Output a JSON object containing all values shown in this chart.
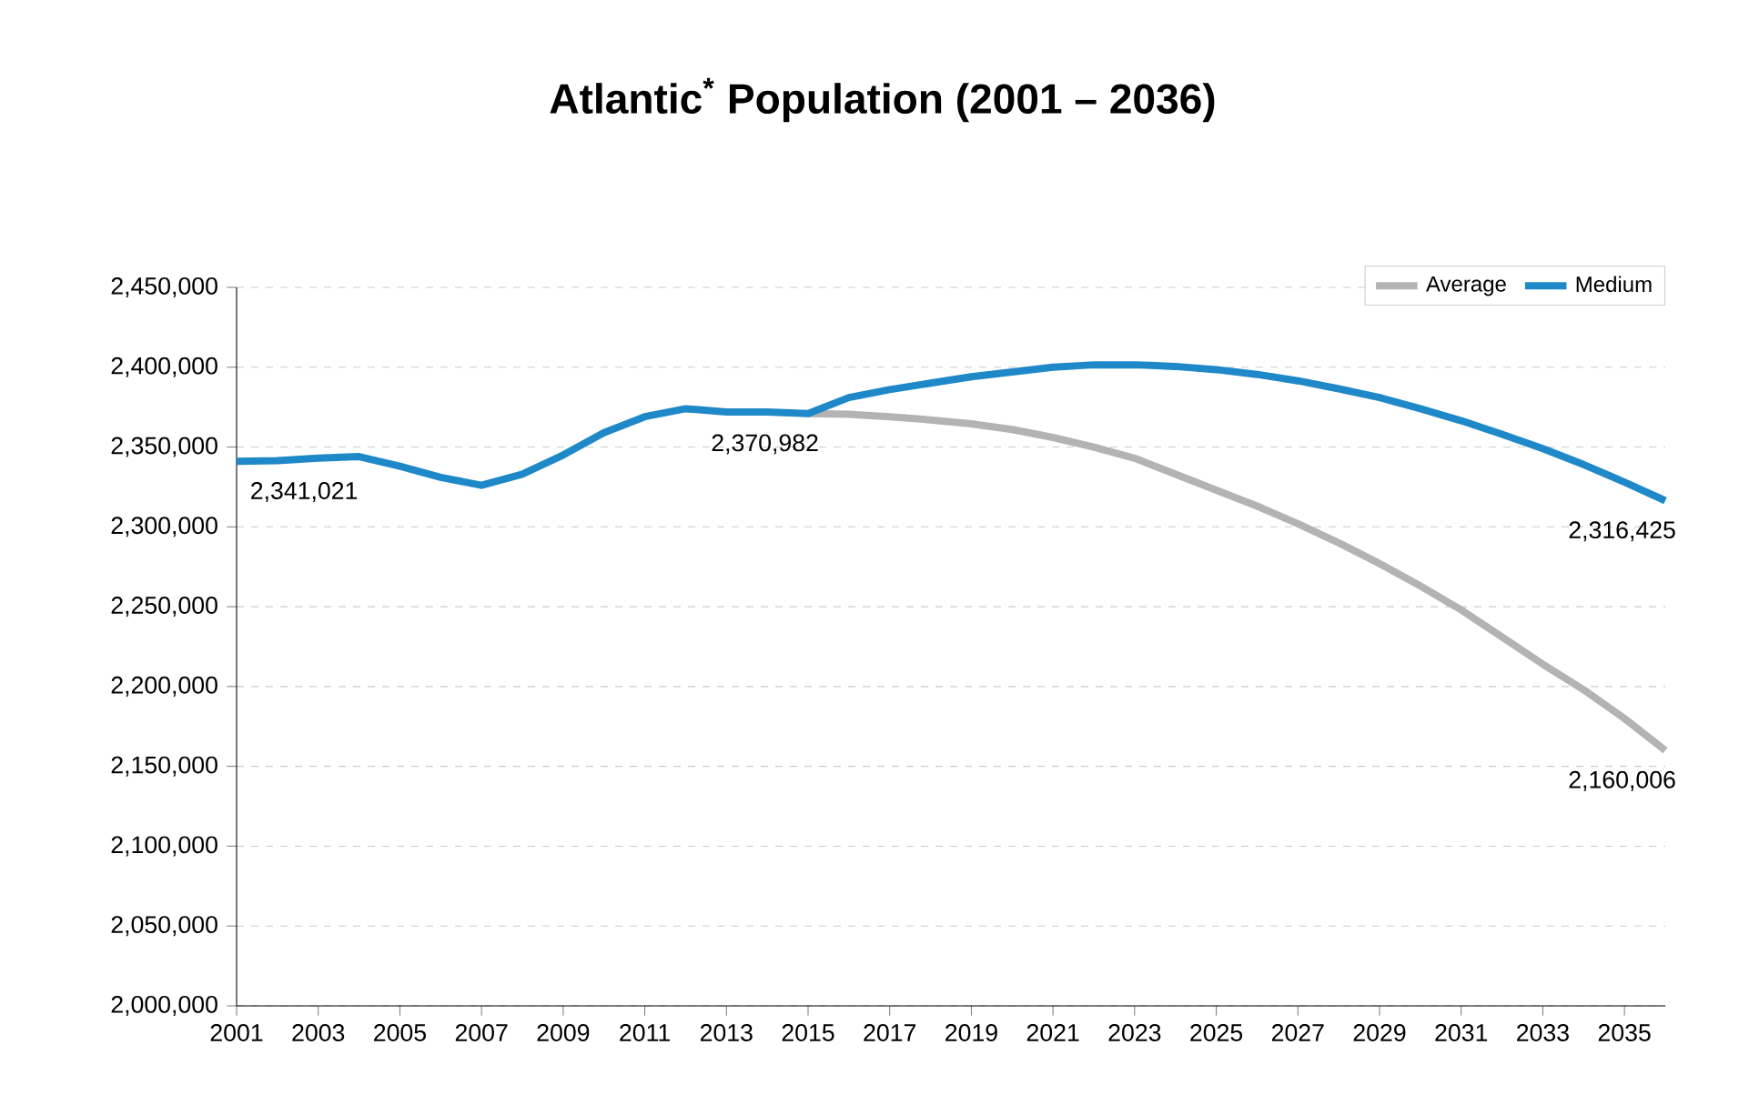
{
  "chart_data": {
    "type": "line",
    "title": "Atlantic$^{*}$ Population (2001 – 2036)",
    "x": [
      2001,
      2002,
      2003,
      2004,
      2005,
      2006,
      2007,
      2008,
      2009,
      2010,
      2011,
      2012,
      2013,
      2014,
      2015,
      2016,
      2017,
      2018,
      2019,
      2020,
      2021,
      2022,
      2023,
      2024,
      2025,
      2026,
      2027,
      2028,
      2029,
      2030,
      2031,
      2032,
      2033,
      2034,
      2035,
      2036
    ],
    "series": [
      {
        "name": "Average",
        "color": "#b3b3b3",
        "values": [
          null,
          null,
          null,
          null,
          null,
          null,
          null,
          null,
          null,
          null,
          null,
          null,
          null,
          null,
          2370982,
          2370500,
          2369000,
          2367000,
          2364500,
          2361000,
          2356000,
          2350000,
          2343000,
          2333000,
          2323000,
          2313000,
          2302000,
          2290000,
          2277000,
          2263000,
          2248000,
          2231000,
          2214000,
          2198000,
          2180000,
          2160006
        ]
      },
      {
        "name": "Medium",
        "color": "#1e88c8",
        "values": [
          2341021,
          2341500,
          2343000,
          2344000,
          2338000,
          2331000,
          2326000,
          2333000,
          2345000,
          2359000,
          2369000,
          2374000,
          2372000,
          2372000,
          2370982,
          2381000,
          2386000,
          2390000,
          2394000,
          2397000,
          2400000,
          2401500,
          2401500,
          2400500,
          2398500,
          2395500,
          2391500,
          2386500,
          2381000,
          2374000,
          2366500,
          2358000,
          2349000,
          2339000,
          2328000,
          2316425
        ]
      }
    ],
    "xlim": [
      2001,
      2036
    ],
    "xticks": [
      2001,
      2003,
      2005,
      2007,
      2009,
      2011,
      2013,
      2015,
      2017,
      2019,
      2021,
      2023,
      2025,
      2027,
      2029,
      2031,
      2033,
      2035
    ],
    "ylim": [
      2000000,
      2450000
    ],
    "yticks": [
      {
        "value": 2000000,
        "label": "2,000,000"
      },
      {
        "value": 2050000,
        "label": "2,050,000"
      },
      {
        "value": 2100000,
        "label": "2,100,000"
      },
      {
        "value": 2150000,
        "label": "2,150,000"
      },
      {
        "value": 2200000,
        "label": "2,200,000"
      },
      {
        "value": 2250000,
        "label": "2,250,000"
      },
      {
        "value": 2300000,
        "label": "2,300,000"
      },
      {
        "value": 2350000,
        "label": "2,350,000"
      },
      {
        "value": 2400000,
        "label": "2,400,000"
      },
      {
        "value": 2450000,
        "label": "2,450,000"
      }
    ],
    "annotations": [
      {
        "text": "2,341,021",
        "x": 2001,
        "y": 2341021
      },
      {
        "text": "2,370,982",
        "x": 2015,
        "y": 2370982
      },
      {
        "text": "2,316,425",
        "x": 2036,
        "y": 2316425
      },
      {
        "text": "2,160,006",
        "x": 2036,
        "y": 2160006
      }
    ],
    "grid": "y",
    "legend": "top right",
    "marker": "none",
    "line_style": "solid"
  }
}
